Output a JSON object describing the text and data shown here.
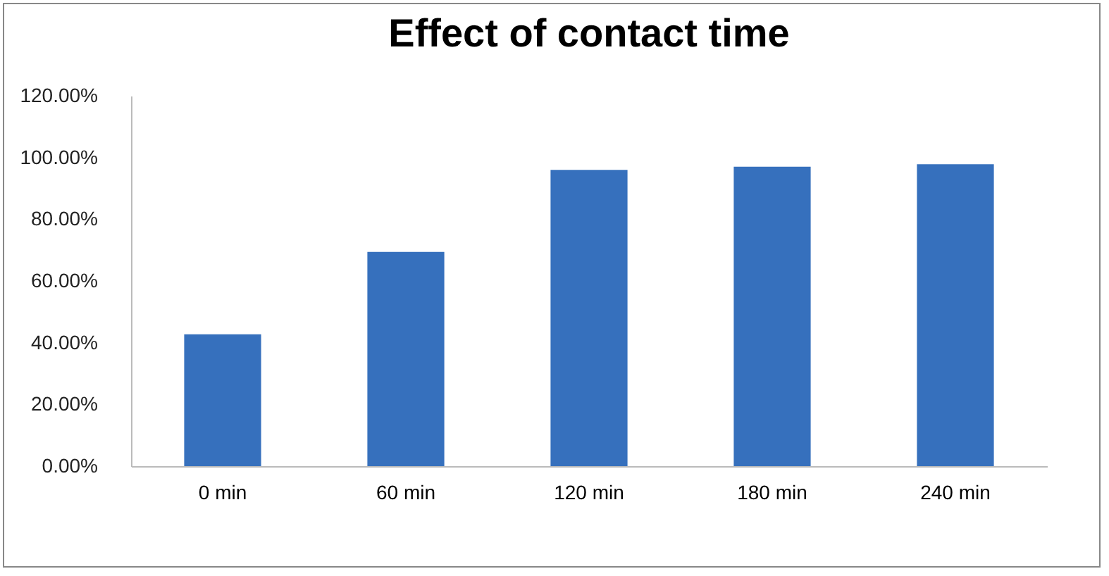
{
  "chart_data": {
    "type": "bar",
    "title": "Effect of contact time",
    "categories": [
      "0 min",
      "60 min",
      "120 min",
      "180 min",
      "240 min"
    ],
    "values": [
      42.7,
      69.4,
      96.0,
      97.0,
      97.8
    ],
    "color": "#3670bd",
    "ylim": [
      0,
      120
    ],
    "yticks": [
      {
        "value": 0,
        "label": "0.00%"
      },
      {
        "value": 20,
        "label": "20.00%"
      },
      {
        "value": 40,
        "label": "40.00%"
      },
      {
        "value": 60,
        "label": "60.00%"
      },
      {
        "value": 80,
        "label": "80.00%"
      },
      {
        "value": 100,
        "label": "100.00%"
      },
      {
        "value": 120,
        "label": "120.00%"
      }
    ],
    "grid": false
  }
}
